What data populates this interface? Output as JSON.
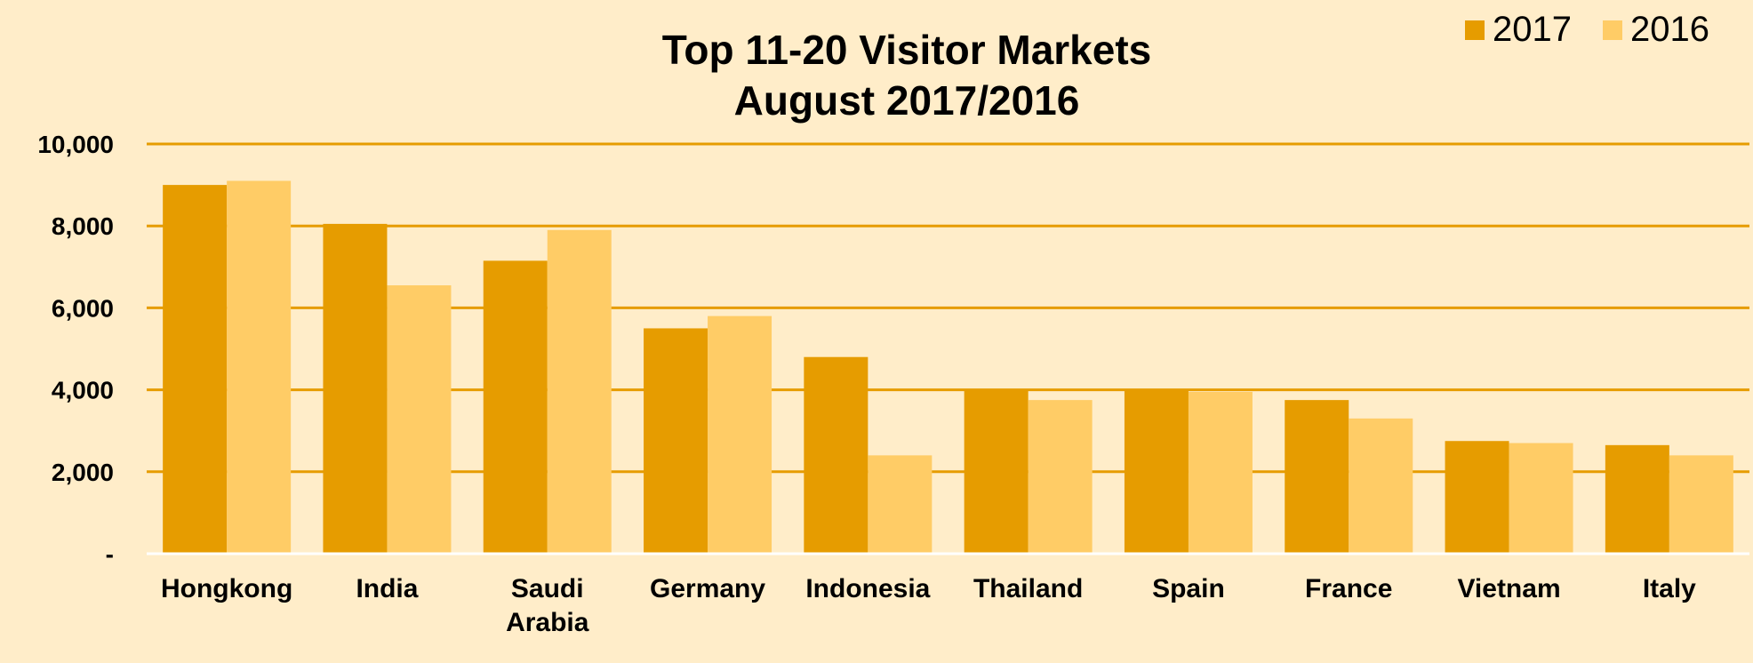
{
  "colors": {
    "background": "#FFEDC9",
    "series_2017": "#E69C00",
    "series_2016": "#FFCC66",
    "gridline": "#E69C00",
    "baseline": "#FFFFFF"
  },
  "chart_data": {
    "type": "bar",
    "title": [
      "Top 11-20 Visitor Markets",
      "August 2017/2016"
    ],
    "categories": [
      [
        "Hongkong"
      ],
      [
        "India"
      ],
      [
        "Saudi",
        "Arabia"
      ],
      [
        "Germany"
      ],
      [
        "Indonesia"
      ],
      [
        "Thailand"
      ],
      [
        "Spain"
      ],
      [
        "France"
      ],
      [
        "Vietnam"
      ],
      [
        "Italy"
      ]
    ],
    "series": [
      {
        "name": "2017",
        "values": [
          9000,
          8050,
          7150,
          5500,
          4800,
          4000,
          4000,
          3750,
          2750,
          2650
        ]
      },
      {
        "name": "2016",
        "values": [
          9100,
          6550,
          7900,
          5800,
          2400,
          3750,
          3950,
          3300,
          2700,
          2400
        ]
      }
    ],
    "ylim": [
      0,
      10000
    ],
    "yticks": [
      {
        "value": 0,
        "label": "-"
      },
      {
        "value": 2000,
        "label": "2,000"
      },
      {
        "value": 4000,
        "label": "4,000"
      },
      {
        "value": 6000,
        "label": "6,000"
      },
      {
        "value": 8000,
        "label": "8,000"
      },
      {
        "value": 10000,
        "label": "10,000"
      }
    ],
    "grid": true,
    "legend_position": "top-right",
    "xlabel": "",
    "ylabel": ""
  }
}
